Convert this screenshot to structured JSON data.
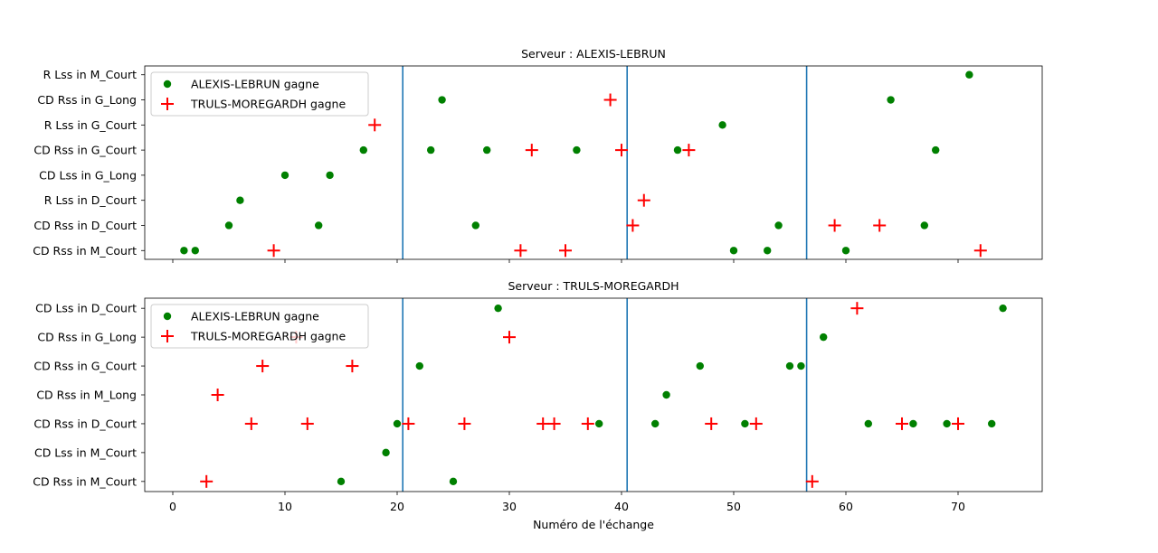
{
  "chart_data": [
    {
      "type": "scatter",
      "title": "Serveur : ALEXIS-LEBRUN",
      "xlabel": "",
      "categories": [
        "CD Rss in M_Court",
        "CD Rss in D_Court",
        "R Lss in D_Court",
        "CD Lss in G_Long",
        "CD Rss in G_Court",
        "R Lss in G_Court",
        "CD Rss in G_Long",
        "R Lss in M_Court"
      ],
      "xlim": [
        -2.5,
        77.5
      ],
      "xticks": [
        0,
        10,
        20,
        30,
        40,
        50,
        60,
        70
      ],
      "show_tick_labels": false,
      "vlines": [
        20.5,
        40.5,
        56.5
      ],
      "legend_position": "top-left",
      "series": [
        {
          "name": "ALEXIS-LEBRUN gagne",
          "marker": "circle",
          "color": "#008000",
          "points": [
            [
              1,
              "CD Rss in M_Court"
            ],
            [
              2,
              "CD Rss in M_Court"
            ],
            [
              50,
              "CD Rss in M_Court"
            ],
            [
              53,
              "CD Rss in M_Court"
            ],
            [
              60,
              "CD Rss in M_Court"
            ],
            [
              5,
              "CD Rss in D_Court"
            ],
            [
              13,
              "CD Rss in D_Court"
            ],
            [
              27,
              "CD Rss in D_Court"
            ],
            [
              54,
              "CD Rss in D_Court"
            ],
            [
              67,
              "CD Rss in D_Court"
            ],
            [
              6,
              "R Lss in D_Court"
            ],
            [
              10,
              "CD Lss in G_Long"
            ],
            [
              14,
              "CD Lss in G_Long"
            ],
            [
              17,
              "CD Rss in G_Court"
            ],
            [
              23,
              "CD Rss in G_Court"
            ],
            [
              28,
              "CD Rss in G_Court"
            ],
            [
              36,
              "CD Rss in G_Court"
            ],
            [
              45,
              "CD Rss in G_Court"
            ],
            [
              68,
              "CD Rss in G_Court"
            ],
            [
              49,
              "R Lss in G_Court"
            ],
            [
              24,
              "CD Rss in G_Long"
            ],
            [
              64,
              "CD Rss in G_Long"
            ],
            [
              71,
              "R Lss in M_Court"
            ]
          ]
        },
        {
          "name": "TRULS-MOREGARDH gagne",
          "marker": "plus",
          "color": "#ff0000",
          "points": [
            [
              9,
              "CD Rss in M_Court"
            ],
            [
              31,
              "CD Rss in M_Court"
            ],
            [
              35,
              "CD Rss in M_Court"
            ],
            [
              72,
              "CD Rss in M_Court"
            ],
            [
              41,
              "CD Rss in D_Court"
            ],
            [
              59,
              "CD Rss in D_Court"
            ],
            [
              63,
              "CD Rss in D_Court"
            ],
            [
              42,
              "R Lss in D_Court"
            ],
            [
              32,
              "CD Rss in G_Court"
            ],
            [
              40,
              "CD Rss in G_Court"
            ],
            [
              46,
              "CD Rss in G_Court"
            ],
            [
              18,
              "R Lss in G_Court"
            ],
            [
              39,
              "CD Rss in G_Long"
            ]
          ]
        }
      ]
    },
    {
      "type": "scatter",
      "title": "Serveur : TRULS-MOREGARDH",
      "xlabel": "Numéro de l'échange",
      "categories": [
        "CD Rss in M_Court",
        "CD Lss in M_Court",
        "CD Rss in D_Court",
        "CD Rss in M_Long",
        "CD Rss in G_Court",
        "CD Rss in G_Long",
        "CD Lss in D_Court"
      ],
      "xlim": [
        -2.5,
        77.5
      ],
      "xticks": [
        0,
        10,
        20,
        30,
        40,
        50,
        60,
        70
      ],
      "show_tick_labels": true,
      "vlines": [
        20.5,
        40.5,
        56.5
      ],
      "legend_position": "top-left",
      "series": [
        {
          "name": "ALEXIS-LEBRUN gagne",
          "marker": "circle",
          "color": "#008000",
          "points": [
            [
              15,
              "CD Rss in M_Court"
            ],
            [
              25,
              "CD Rss in M_Court"
            ],
            [
              19,
              "CD Lss in M_Court"
            ],
            [
              20,
              "CD Rss in D_Court"
            ],
            [
              38,
              "CD Rss in D_Court"
            ],
            [
              43,
              "CD Rss in D_Court"
            ],
            [
              51,
              "CD Rss in D_Court"
            ],
            [
              62,
              "CD Rss in D_Court"
            ],
            [
              66,
              "CD Rss in D_Court"
            ],
            [
              69,
              "CD Rss in D_Court"
            ],
            [
              73,
              "CD Rss in D_Court"
            ],
            [
              44,
              "CD Rss in M_Long"
            ],
            [
              22,
              "CD Rss in G_Court"
            ],
            [
              47,
              "CD Rss in G_Court"
            ],
            [
              55,
              "CD Rss in G_Court"
            ],
            [
              56,
              "CD Rss in G_Court"
            ],
            [
              58,
              "CD Rss in G_Long"
            ],
            [
              29,
              "CD Lss in D_Court"
            ],
            [
              74,
              "CD Lss in D_Court"
            ]
          ]
        },
        {
          "name": "TRULS-MOREGARDH gagne",
          "marker": "plus",
          "color": "#ff0000",
          "points": [
            [
              3,
              "CD Rss in M_Court"
            ],
            [
              57,
              "CD Rss in M_Court"
            ],
            [
              7,
              "CD Rss in D_Court"
            ],
            [
              12,
              "CD Rss in D_Court"
            ],
            [
              21,
              "CD Rss in D_Court"
            ],
            [
              26,
              "CD Rss in D_Court"
            ],
            [
              33,
              "CD Rss in D_Court"
            ],
            [
              34,
              "CD Rss in D_Court"
            ],
            [
              37,
              "CD Rss in D_Court"
            ],
            [
              48,
              "CD Rss in D_Court"
            ],
            [
              52,
              "CD Rss in D_Court"
            ],
            [
              65,
              "CD Rss in D_Court"
            ],
            [
              70,
              "CD Rss in D_Court"
            ],
            [
              4,
              "CD Rss in M_Long"
            ],
            [
              8,
              "CD Rss in G_Court"
            ],
            [
              16,
              "CD Rss in G_Court"
            ],
            [
              11,
              "CD Rss in G_Long"
            ],
            [
              30,
              "CD Rss in G_Long"
            ],
            [
              61,
              "CD Lss in D_Court"
            ]
          ]
        }
      ]
    }
  ]
}
